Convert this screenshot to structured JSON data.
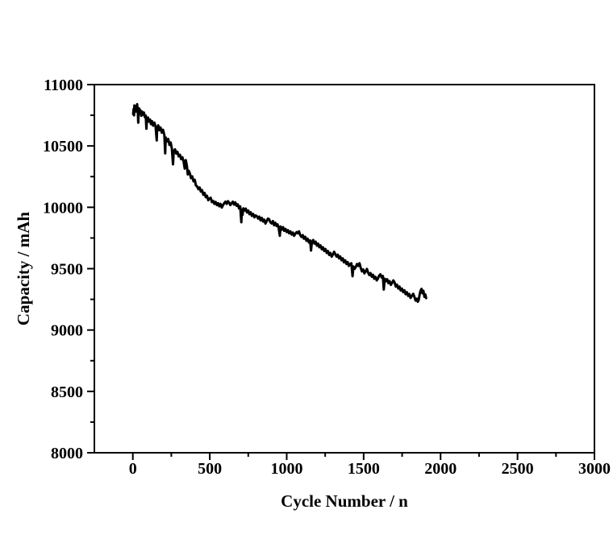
{
  "chart_data": {
    "type": "scatter",
    "title": "",
    "xlabel": "Cycle Number / n",
    "ylabel": "Capacity / mAh",
    "xlim": [
      -250,
      3000
    ],
    "ylim": [
      8000,
      11000
    ],
    "x_major_ticks": [
      0,
      500,
      1000,
      1500,
      2000,
      2500,
      3000
    ],
    "x_minor_ticks": [
      250,
      750,
      1250,
      1750,
      2250,
      2750
    ],
    "y_major_ticks": [
      8000,
      8500,
      9000,
      9500,
      10000,
      10500,
      11000
    ],
    "y_minor_ticks": [
      8250,
      8750,
      9250,
      9750,
      10250,
      10750
    ],
    "grid": false,
    "frame": true,
    "legend": "none",
    "background_color": "#ffffff",
    "frame_color": "#000000",
    "line_color": "#000000",
    "series": [
      {
        "name": "capacity",
        "points": [
          [
            2,
            10760
          ],
          [
            5,
            10800
          ],
          [
            8,
            10750
          ],
          [
            10,
            10830
          ],
          [
            13,
            10790
          ],
          [
            16,
            10820
          ],
          [
            20,
            10780
          ],
          [
            24,
            10815
          ],
          [
            28,
            10840
          ],
          [
            32,
            10790
          ],
          [
            35,
            10690
          ],
          [
            38,
            10770
          ],
          [
            42,
            10805
          ],
          [
            46,
            10765
          ],
          [
            50,
            10790
          ],
          [
            55,
            10745
          ],
          [
            60,
            10780
          ],
          [
            66,
            10755
          ],
          [
            72,
            10772
          ],
          [
            78,
            10735
          ],
          [
            84,
            10748
          ],
          [
            88,
            10640
          ],
          [
            92,
            10718
          ],
          [
            98,
            10732
          ],
          [
            105,
            10698
          ],
          [
            112,
            10715
          ],
          [
            118,
            10678
          ],
          [
            125,
            10702
          ],
          [
            132,
            10665
          ],
          [
            140,
            10690
          ],
          [
            148,
            10658
          ],
          [
            155,
            10545
          ],
          [
            158,
            10642
          ],
          [
            165,
            10668
          ],
          [
            172,
            10628
          ],
          [
            180,
            10650
          ],
          [
            188,
            10608
          ],
          [
            196,
            10632
          ],
          [
            205,
            10588
          ],
          [
            210,
            10440
          ],
          [
            214,
            10568
          ],
          [
            222,
            10538
          ],
          [
            230,
            10556
          ],
          [
            238,
            10508
          ],
          [
            246,
            10528
          ],
          [
            254,
            10478
          ],
          [
            261,
            10350
          ],
          [
            266,
            10458
          ],
          [
            274,
            10472
          ],
          [
            282,
            10438
          ],
          [
            290,
            10452
          ],
          [
            298,
            10415
          ],
          [
            306,
            10428
          ],
          [
            314,
            10392
          ],
          [
            322,
            10408
          ],
          [
            330,
            10375
          ],
          [
            337,
            10315
          ],
          [
            344,
            10385
          ],
          [
            351,
            10338
          ],
          [
            357,
            10268
          ],
          [
            363,
            10298
          ],
          [
            370,
            10278
          ],
          [
            378,
            10238
          ],
          [
            386,
            10252
          ],
          [
            394,
            10212
          ],
          [
            402,
            10225
          ],
          [
            410,
            10178
          ],
          [
            418,
            10170
          ],
          [
            426,
            10148
          ],
          [
            434,
            10162
          ],
          [
            442,
            10128
          ],
          [
            450,
            10140
          ],
          [
            458,
            10102
          ],
          [
            466,
            10118
          ],
          [
            474,
            10082
          ],
          [
            482,
            10094
          ],
          [
            490,
            10058
          ],
          [
            498,
            10072
          ],
          [
            506,
            10078
          ],
          [
            514,
            10042
          ],
          [
            522,
            10052
          ],
          [
            530,
            10028
          ],
          [
            538,
            10044
          ],
          [
            546,
            10018
          ],
          [
            554,
            10034
          ],
          [
            562,
            10008
          ],
          [
            570,
            10028
          ],
          [
            578,
            9998
          ],
          [
            586,
            10018
          ],
          [
            594,
            10034
          ],
          [
            602,
            10046
          ],
          [
            610,
            10028
          ],
          [
            618,
            10050
          ],
          [
            626,
            10038
          ],
          [
            634,
            10018
          ],
          [
            642,
            10034
          ],
          [
            650,
            10046
          ],
          [
            658,
            10022
          ],
          [
            666,
            10040
          ],
          [
            674,
            10012
          ],
          [
            682,
            10024
          ],
          [
            690,
            9992
          ],
          [
            698,
            10008
          ],
          [
            705,
            9878
          ],
          [
            709,
            9982
          ],
          [
            713,
            9938
          ],
          [
            718,
            9992
          ],
          [
            726,
            9974
          ],
          [
            734,
            9990
          ],
          [
            742,
            9958
          ],
          [
            750,
            9974
          ],
          [
            758,
            9944
          ],
          [
            766,
            9960
          ],
          [
            774,
            9930
          ],
          [
            782,
            9946
          ],
          [
            790,
            9918
          ],
          [
            798,
            9934
          ],
          [
            806,
            9928
          ],
          [
            814,
            9908
          ],
          [
            822,
            9924
          ],
          [
            830,
            9894
          ],
          [
            838,
            9914
          ],
          [
            846,
            9884
          ],
          [
            854,
            9900
          ],
          [
            862,
            9868
          ],
          [
            870,
            9888
          ],
          [
            878,
            9908
          ],
          [
            886,
            9902
          ],
          [
            894,
            9878
          ],
          [
            902,
            9868
          ],
          [
            910,
            9888
          ],
          [
            918,
            9854
          ],
          [
            926,
            9874
          ],
          [
            934,
            9848
          ],
          [
            940,
            9862
          ],
          [
            948,
            9832
          ],
          [
            955,
            9768
          ],
          [
            960,
            9844
          ],
          [
            968,
            9818
          ],
          [
            976,
            9838
          ],
          [
            984,
            9808
          ],
          [
            992,
            9824
          ],
          [
            1000,
            9798
          ],
          [
            1008,
            9814
          ],
          [
            1016,
            9788
          ],
          [
            1024,
            9804
          ],
          [
            1032,
            9778
          ],
          [
            1040,
            9794
          ],
          [
            1048,
            9768
          ],
          [
            1056,
            9784
          ],
          [
            1064,
            9798
          ],
          [
            1072,
            9788
          ],
          [
            1080,
            9804
          ],
          [
            1088,
            9774
          ],
          [
            1096,
            9758
          ],
          [
            1104,
            9774
          ],
          [
            1112,
            9744
          ],
          [
            1120,
            9760
          ],
          [
            1128,
            9728
          ],
          [
            1136,
            9744
          ],
          [
            1144,
            9714
          ],
          [
            1152,
            9730
          ],
          [
            1158,
            9648
          ],
          [
            1164,
            9718
          ],
          [
            1172,
            9734
          ],
          [
            1180,
            9704
          ],
          [
            1188,
            9720
          ],
          [
            1196,
            9688
          ],
          [
            1204,
            9704
          ],
          [
            1212,
            9674
          ],
          [
            1220,
            9690
          ],
          [
            1228,
            9658
          ],
          [
            1236,
            9674
          ],
          [
            1244,
            9644
          ],
          [
            1252,
            9660
          ],
          [
            1260,
            9628
          ],
          [
            1268,
            9644
          ],
          [
            1276,
            9612
          ],
          [
            1284,
            9628
          ],
          [
            1292,
            9598
          ],
          [
            1300,
            9614
          ],
          [
            1308,
            9638
          ],
          [
            1316,
            9618
          ],
          [
            1324,
            9598
          ],
          [
            1332,
            9614
          ],
          [
            1340,
            9584
          ],
          [
            1348,
            9600
          ],
          [
            1356,
            9568
          ],
          [
            1364,
            9584
          ],
          [
            1372,
            9552
          ],
          [
            1380,
            9568
          ],
          [
            1388,
            9538
          ],
          [
            1396,
            9554
          ],
          [
            1404,
            9522
          ],
          [
            1412,
            9538
          ],
          [
            1420,
            9544
          ],
          [
            1428,
            9438
          ],
          [
            1433,
            9518
          ],
          [
            1441,
            9498
          ],
          [
            1449,
            9514
          ],
          [
            1457,
            9538
          ],
          [
            1465,
            9522
          ],
          [
            1473,
            9544
          ],
          [
            1481,
            9508
          ],
          [
            1489,
            9478
          ],
          [
            1497,
            9494
          ],
          [
            1505,
            9462
          ],
          [
            1513,
            9478
          ],
          [
            1521,
            9498
          ],
          [
            1529,
            9468
          ],
          [
            1537,
            9448
          ],
          [
            1545,
            9464
          ],
          [
            1553,
            9434
          ],
          [
            1561,
            9450
          ],
          [
            1569,
            9418
          ],
          [
            1577,
            9434
          ],
          [
            1585,
            9404
          ],
          [
            1593,
            9420
          ],
          [
            1601,
            9444
          ],
          [
            1609,
            9454
          ],
          [
            1617,
            9428
          ],
          [
            1625,
            9440
          ],
          [
            1631,
            9330
          ],
          [
            1637,
            9418
          ],
          [
            1645,
            9398
          ],
          [
            1653,
            9414
          ],
          [
            1661,
            9382
          ],
          [
            1669,
            9398
          ],
          [
            1677,
            9368
          ],
          [
            1685,
            9384
          ],
          [
            1693,
            9404
          ],
          [
            1701,
            9388
          ],
          [
            1709,
            9354
          ],
          [
            1717,
            9370
          ],
          [
            1725,
            9338
          ],
          [
            1733,
            9354
          ],
          [
            1741,
            9322
          ],
          [
            1749,
            9338
          ],
          [
            1757,
            9308
          ],
          [
            1765,
            9324
          ],
          [
            1773,
            9292
          ],
          [
            1781,
            9308
          ],
          [
            1789,
            9278
          ],
          [
            1797,
            9294
          ],
          [
            1805,
            9262
          ],
          [
            1813,
            9278
          ],
          [
            1822,
            9295
          ],
          [
            1830,
            9270
          ],
          [
            1838,
            9240
          ],
          [
            1846,
            9255
          ],
          [
            1852,
            9230
          ],
          [
            1858,
            9245
          ],
          [
            1864,
            9290
          ],
          [
            1870,
            9320
          ],
          [
            1876,
            9335
          ],
          [
            1882,
            9300
          ],
          [
            1888,
            9320
          ],
          [
            1895,
            9270
          ],
          [
            1901,
            9290
          ],
          [
            1906,
            9260
          ]
        ]
      }
    ]
  }
}
